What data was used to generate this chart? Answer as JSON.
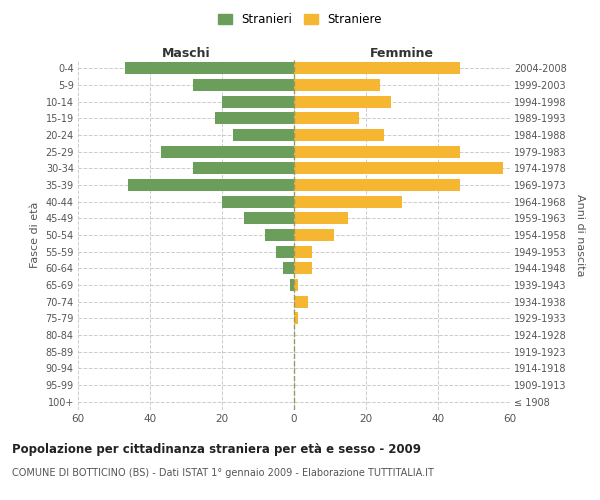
{
  "age_groups": [
    "100+",
    "95-99",
    "90-94",
    "85-89",
    "80-84",
    "75-79",
    "70-74",
    "65-69",
    "60-64",
    "55-59",
    "50-54",
    "45-49",
    "40-44",
    "35-39",
    "30-34",
    "25-29",
    "20-24",
    "15-19",
    "10-14",
    "5-9",
    "0-4"
  ],
  "birth_years": [
    "≤ 1908",
    "1909-1913",
    "1914-1918",
    "1919-1923",
    "1924-1928",
    "1929-1933",
    "1934-1938",
    "1939-1943",
    "1944-1948",
    "1949-1953",
    "1954-1958",
    "1959-1963",
    "1964-1968",
    "1969-1973",
    "1974-1978",
    "1979-1983",
    "1984-1988",
    "1989-1993",
    "1994-1998",
    "1999-2003",
    "2004-2008"
  ],
  "males": [
    0,
    0,
    0,
    0,
    0,
    0,
    0,
    1,
    3,
    5,
    8,
    14,
    20,
    46,
    28,
    37,
    17,
    22,
    20,
    28,
    47
  ],
  "females": [
    0,
    0,
    0,
    0,
    0,
    1,
    4,
    1,
    5,
    5,
    11,
    15,
    30,
    46,
    58,
    46,
    25,
    18,
    27,
    24,
    46
  ],
  "male_color": "#6a9e5a",
  "female_color": "#f5b731",
  "background_color": "#ffffff",
  "grid_color": "#cccccc",
  "title": "Popolazione per cittadinanza straniera per età e sesso - 2009",
  "subtitle": "COMUNE DI BOTTICINO (BS) - Dati ISTAT 1° gennaio 2009 - Elaborazione TUTTITALIA.IT",
  "xlabel_left": "Maschi",
  "xlabel_right": "Femmine",
  "ylabel_left": "Fasce di età",
  "ylabel_right": "Anni di nascita",
  "legend_males": "Stranieri",
  "legend_females": "Straniere",
  "xlim": 60,
  "center_line_color": "#999966"
}
